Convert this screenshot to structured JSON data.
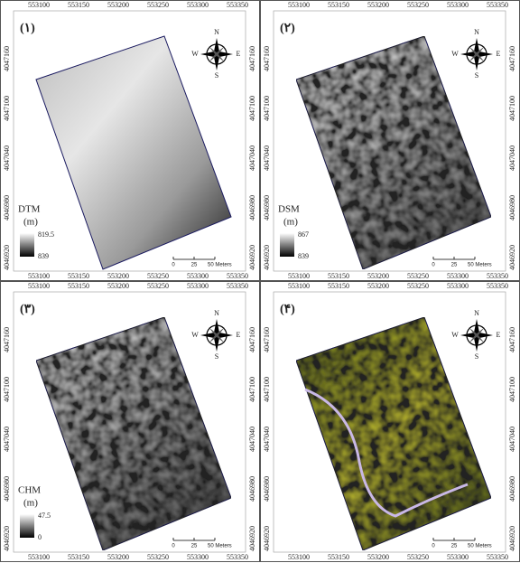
{
  "x_ticks": [
    "553100",
    "553150",
    "553200",
    "553250",
    "553300",
    "553350"
  ],
  "y_ticks": [
    "4047160",
    "4047100",
    "4047040",
    "4046980",
    "4046920"
  ],
  "compass": {
    "north": "N",
    "south": "S",
    "east": "E",
    "west": "W"
  },
  "scale_bar": [
    "0",
    "25",
    "50 Meters"
  ],
  "panels": [
    {
      "label": "(۱)",
      "legend_title": "DTM",
      "legend_unit": "(m)",
      "legend_top": "819.5",
      "legend_bottom": "839"
    },
    {
      "label": "(۲)",
      "legend_title": "DSM",
      "legend_unit": "(m)",
      "legend_top": "867",
      "legend_bottom": "839"
    },
    {
      "label": "(۳)",
      "legend_title": "CHM",
      "legend_unit": "(m)",
      "legend_top": "47.5",
      "legend_bottom": "0"
    },
    {
      "label": "(۴)"
    }
  ]
}
